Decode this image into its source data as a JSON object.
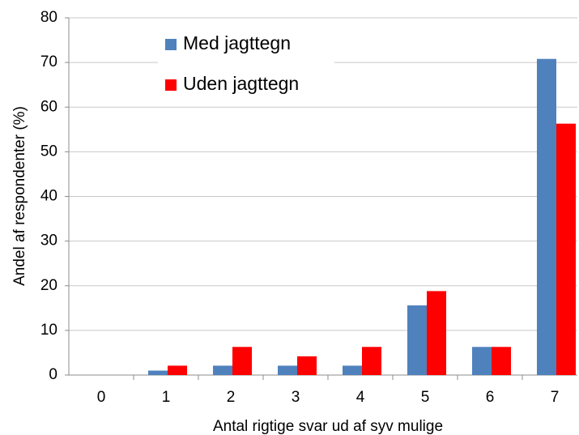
{
  "chart_data": {
    "type": "bar",
    "x_label": "Antal rigtige svar ud af syv mulige",
    "y_label": "Andel af respondenter (%)",
    "categories": [
      "0",
      "1",
      "2",
      "3",
      "4",
      "5",
      "6",
      "7"
    ],
    "series": [
      {
        "name": "Med jagttegn",
        "color": "#4f81bd",
        "values": [
          0,
          1,
          2.1,
          2.1,
          2.1,
          15.6,
          6.3,
          70.8
        ]
      },
      {
        "name": "Uden jagttegn",
        "color": "#ff0000",
        "values": [
          0,
          2.1,
          6.3,
          4.2,
          6.3,
          18.8,
          6.3,
          56.3
        ]
      }
    ],
    "ylim": [
      0,
      80
    ],
    "yticks": [
      0,
      10,
      20,
      30,
      40,
      50,
      60,
      70,
      80
    ],
    "grid": true,
    "legend": "top-left"
  }
}
